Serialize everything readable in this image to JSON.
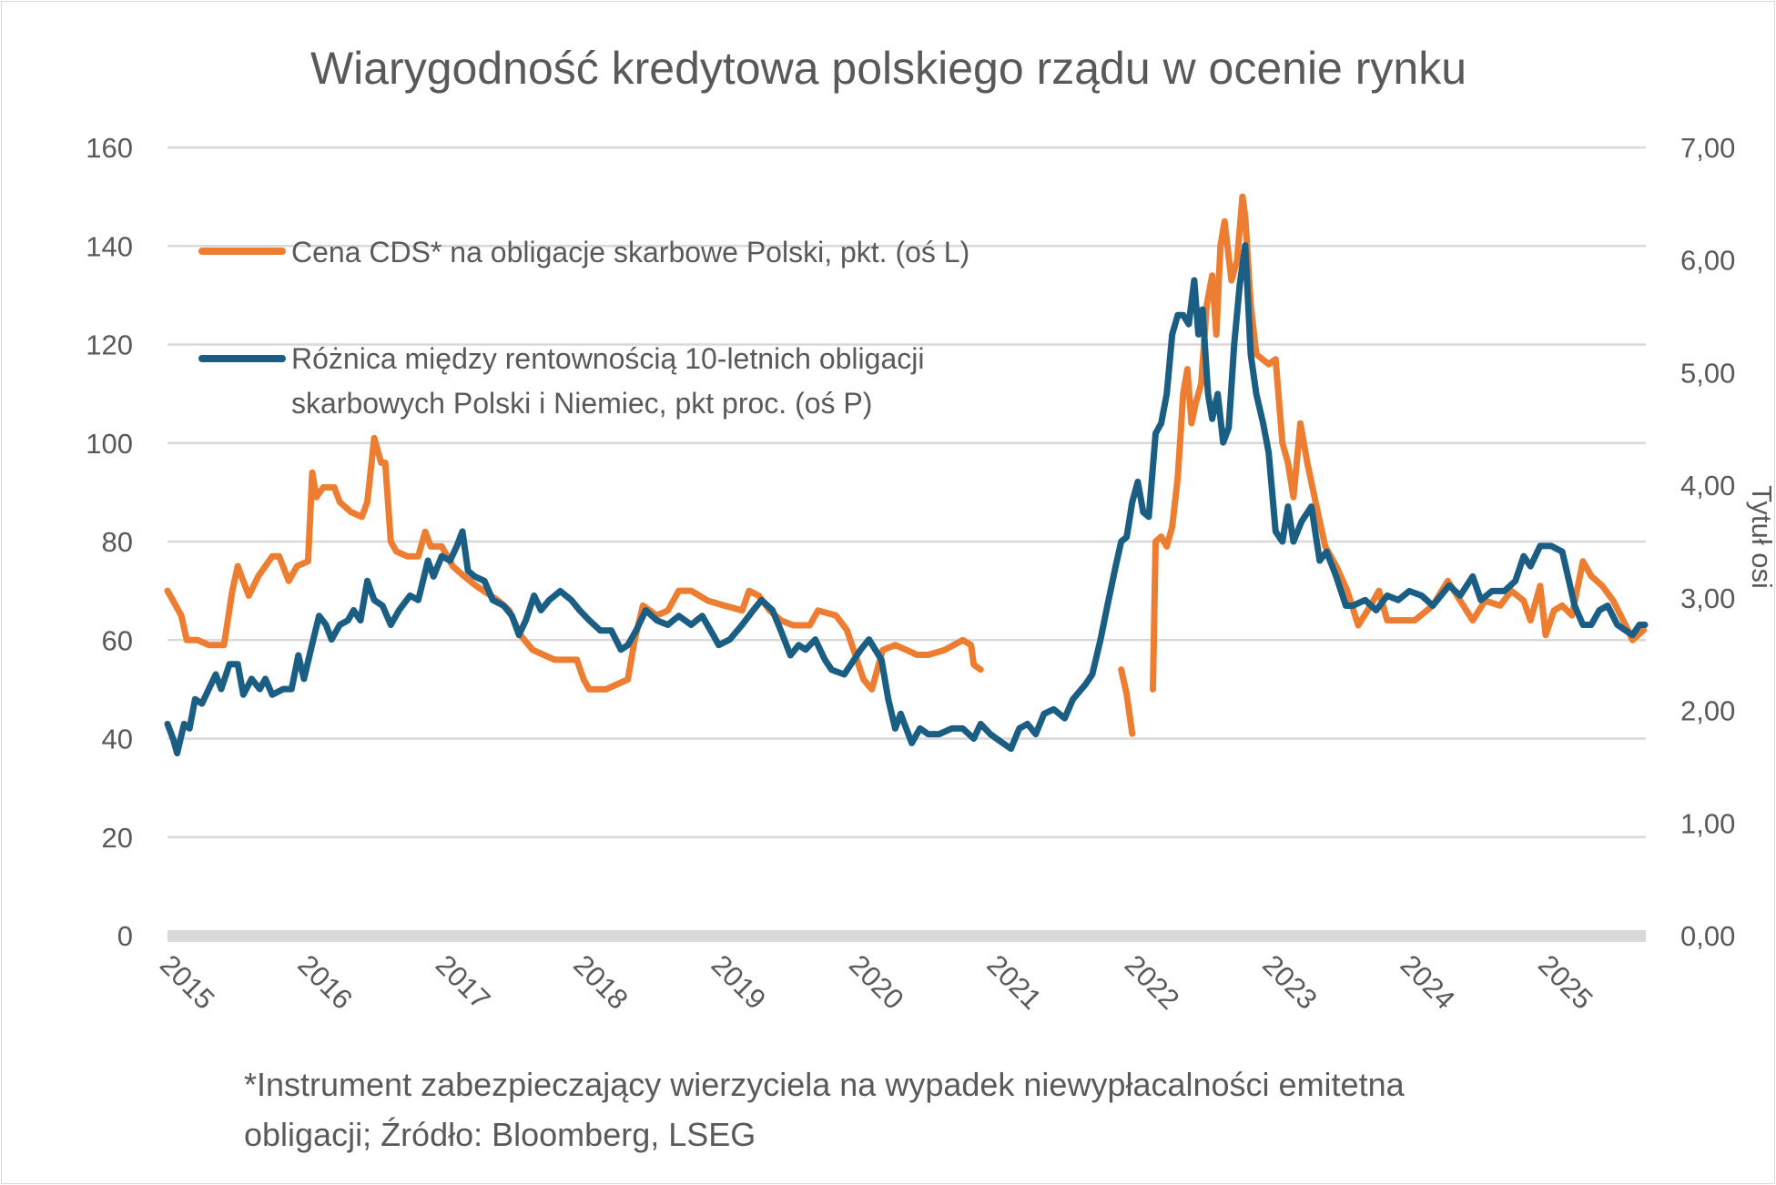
{
  "chart_data": {
    "type": "line",
    "title": "Wiarygodność kredytowa polskiego rządu w ocenie rynku",
    "xlabel": "",
    "ylabel": "",
    "y2label": "Tytuł osi",
    "x_ticks": [
      "2015",
      "2016",
      "2017",
      "2018",
      "2019",
      "2020",
      "2021",
      "2022",
      "2023",
      "2024",
      "2025"
    ],
    "xlim": [
      2015,
      2025.72
    ],
    "ylim": [
      0,
      160
    ],
    "y_ticks": [
      "0",
      "20",
      "40",
      "60",
      "80",
      "100",
      "120",
      "140",
      "160"
    ],
    "y2lim": [
      0,
      7
    ],
    "y2_ticks": [
      "0,00",
      "1,00",
      "2,00",
      "3,00",
      "4,00",
      "5,00",
      "6,00",
      "7,00"
    ],
    "grid": true,
    "legend_placement": "top-left",
    "series": [
      {
        "name": "Cena CDS* na obligacje skarbowe Polski, pkt. (oś L)",
        "axis": "left",
        "color": "#ED7D31",
        "x": [
          2015.0,
          2015.04,
          2015.1,
          2015.14,
          2015.22,
          2015.3,
          2015.41,
          2015.47,
          2015.51,
          2015.59,
          2015.66,
          2015.76,
          2015.81,
          2015.88,
          2015.94,
          2016.02,
          2016.05,
          2016.08,
          2016.13,
          2016.21,
          2016.25,
          2016.33,
          2016.41,
          2016.45,
          2016.5,
          2016.55,
          2016.58,
          2016.62,
          2016.66,
          2016.74,
          2016.82,
          2016.87,
          2016.91,
          2016.99,
          2017.07,
          2017.15,
          2017.24,
          2017.4,
          2017.48,
          2017.56,
          2017.65,
          2017.73,
          2017.81,
          2017.97,
          2018.02,
          2018.06,
          2018.18,
          2018.26,
          2018.34,
          2018.39,
          2018.45,
          2018.55,
          2018.63,
          2018.71,
          2018.8,
          2018.92,
          2019.04,
          2019.17,
          2019.22,
          2019.29,
          2019.37,
          2019.45,
          2019.54,
          2019.66,
          2019.72,
          2019.85,
          2019.93,
          2019.99,
          2020.05,
          2020.11,
          2020.19,
          2020.28,
          2020.36,
          2020.44,
          2020.52,
          2020.64,
          2020.77,
          2020.83,
          2020.85,
          2020.9,
          2021.4,
          2021.92,
          2021.96,
          2022.0,
          2022.08,
          2022.15,
          2022.17,
          2022.21,
          2022.25,
          2022.29,
          2022.33,
          2022.37,
          2022.4,
          2022.43,
          2022.46,
          2022.5,
          2022.54,
          2022.58,
          2022.61,
          2022.64,
          2022.67,
          2022.72,
          2022.76,
          2022.8,
          2022.82,
          2022.86,
          2022.9,
          2022.99,
          2023.04,
          2023.09,
          2023.13,
          2023.17,
          2023.22,
          2023.27,
          2023.33,
          2023.4,
          2023.48,
          2023.56,
          2023.64,
          2023.73,
          2023.79,
          2023.85,
          2023.97,
          2024.05,
          2024.18,
          2024.29,
          2024.38,
          2024.47,
          2024.56,
          2024.67,
          2024.75,
          2024.84,
          2024.89,
          2024.96,
          2025.0,
          2025.06,
          2025.12,
          2025.19,
          2025.27,
          2025.33,
          2025.41,
          2025.49,
          2025.58,
          2025.63,
          2025.71
        ],
        "values": [
          70,
          68,
          65,
          60,
          60,
          59,
          59,
          70,
          75,
          69,
          73,
          77,
          77,
          72,
          75,
          76,
          94,
          89,
          91,
          91,
          88,
          86,
          85,
          88,
          101,
          96,
          96,
          80,
          78,
          77,
          77,
          82,
          79,
          79,
          75,
          73,
          71,
          68,
          66,
          61,
          58,
          57,
          56,
          56,
          52,
          50,
          50,
          51,
          52,
          60,
          67,
          65,
          66,
          70,
          70,
          68,
          67,
          66,
          70,
          69,
          66,
          64,
          63,
          63,
          66,
          65,
          62,
          57,
          52,
          50,
          58,
          59,
          58,
          57,
          57,
          58,
          60,
          59,
          55,
          54,
          null,
          54,
          49,
          41,
          null,
          50,
          80,
          81,
          79,
          83,
          93,
          110,
          115,
          104,
          108,
          112,
          128,
          134,
          122,
          140,
          145,
          133,
          137,
          150,
          146,
          128,
          118,
          116,
          117,
          100,
          96,
          89,
          104,
          96,
          88,
          79,
          75,
          70,
          63,
          67,
          70,
          64,
          64,
          64,
          67,
          72,
          68,
          64,
          68,
          67,
          70,
          68,
          64,
          71,
          61,
          66,
          67,
          65,
          76,
          73,
          71,
          68,
          63,
          60,
          62
        ]
      },
      {
        "name": "Różnica między rentownością 10-letnich obligacji skarbowych Polski i Niemiec, pkt proc. (oś P)",
        "name_lines": [
          "Różnica między rentownością 10-letnich obligacji",
          "skarbowych Polski i Niemiec, pkt proc. (oś P)"
        ],
        "axis": "right",
        "color": "#1B5E83",
        "x": [
          2015.0,
          2015.04,
          2015.07,
          2015.12,
          2015.16,
          2015.2,
          2015.25,
          2015.3,
          2015.35,
          2015.39,
          2015.45,
          2015.51,
          2015.55,
          2015.61,
          2015.67,
          2015.71,
          2015.76,
          2015.84,
          2015.9,
          2015.95,
          2015.99,
          2016.04,
          2016.1,
          2016.15,
          2016.19,
          2016.25,
          2016.31,
          2016.35,
          2016.4,
          2016.45,
          2016.5,
          2016.56,
          2016.62,
          2016.68,
          2016.76,
          2016.82,
          2016.89,
          2016.93,
          2016.99,
          2017.05,
          2017.1,
          2017.14,
          2017.18,
          2017.23,
          2017.3,
          2017.36,
          2017.44,
          2017.5,
          2017.55,
          2017.6,
          2017.66,
          2017.71,
          2017.77,
          2017.85,
          2017.93,
          2017.99,
          2018.06,
          2018.14,
          2018.22,
          2018.29,
          2018.34,
          2018.4,
          2018.47,
          2018.55,
          2018.63,
          2018.71,
          2018.8,
          2018.88,
          2018.96,
          2019.0,
          2019.08,
          2019.17,
          2019.25,
          2019.31,
          2019.39,
          2019.45,
          2019.52,
          2019.58,
          2019.63,
          2019.7,
          2019.77,
          2019.82,
          2019.91,
          2019.96,
          2020.03,
          2020.09,
          2020.18,
          2020.23,
          2020.28,
          2020.32,
          2020.36,
          2020.4,
          2020.46,
          2020.52,
          2020.6,
          2020.69,
          2020.77,
          2020.85,
          2020.9,
          2020.97,
          2021.06,
          2021.12,
          2021.18,
          2021.24,
          2021.3,
          2021.36,
          2021.43,
          2021.51,
          2021.57,
          2021.66,
          2021.71,
          2021.77,
          2021.82,
          2021.88,
          2021.92,
          2021.96,
          2022.0,
          2022.04,
          2022.08,
          2022.12,
          2022.17,
          2022.21,
          2022.25,
          2022.29,
          2022.33,
          2022.37,
          2022.41,
          2022.45,
          2022.48,
          2022.51,
          2022.55,
          2022.58,
          2022.62,
          2022.66,
          2022.7,
          2022.74,
          2022.78,
          2022.82,
          2022.86,
          2022.9,
          2022.95,
          2022.99,
          2023.04,
          2023.09,
          2023.13,
          2023.17,
          2023.23,
          2023.3,
          2023.36,
          2023.41,
          2023.48,
          2023.55,
          2023.6,
          2023.69,
          2023.77,
          2023.85,
          2023.93,
          2024.01,
          2024.1,
          2024.18,
          2024.24,
          2024.3,
          2024.38,
          2024.47,
          2024.53,
          2024.61,
          2024.7,
          2024.78,
          2024.84,
          2024.89,
          2024.96,
          2025.04,
          2025.12,
          2025.21,
          2025.27,
          2025.33,
          2025.39,
          2025.45,
          2025.52,
          2025.58,
          2025.63,
          2025.68,
          2025.72
        ],
        "values": [
          1.88,
          1.75,
          1.62,
          1.88,
          1.84,
          2.1,
          2.06,
          2.19,
          2.32,
          2.19,
          2.41,
          2.41,
          2.14,
          2.28,
          2.19,
          2.28,
          2.14,
          2.19,
          2.19,
          2.49,
          2.28,
          2.54,
          2.84,
          2.76,
          2.63,
          2.76,
          2.8,
          2.89,
          2.8,
          3.15,
          2.98,
          2.93,
          2.76,
          2.89,
          3.02,
          2.98,
          3.33,
          3.19,
          3.37,
          3.33,
          3.46,
          3.59,
          3.24,
          3.19,
          3.15,
          2.98,
          2.93,
          2.84,
          2.67,
          2.8,
          3.02,
          2.89,
          2.98,
          3.06,
          2.98,
          2.89,
          2.8,
          2.71,
          2.71,
          2.54,
          2.58,
          2.71,
          2.89,
          2.8,
          2.76,
          2.84,
          2.76,
          2.84,
          2.67,
          2.58,
          2.63,
          2.76,
          2.89,
          2.98,
          2.89,
          2.71,
          2.49,
          2.58,
          2.54,
          2.63,
          2.45,
          2.36,
          2.32,
          2.41,
          2.54,
          2.63,
          2.45,
          2.1,
          1.84,
          1.97,
          1.84,
          1.71,
          1.84,
          1.79,
          1.79,
          1.84,
          1.84,
          1.75,
          1.88,
          1.79,
          1.71,
          1.66,
          1.84,
          1.88,
          1.79,
          1.97,
          2.01,
          1.93,
          2.1,
          2.23,
          2.32,
          2.63,
          2.93,
          3.28,
          3.5,
          3.54,
          3.85,
          4.03,
          3.76,
          3.72,
          4.46,
          4.55,
          4.81,
          5.34,
          5.51,
          5.51,
          5.43,
          5.82,
          5.34,
          5.56,
          4.81,
          4.59,
          4.81,
          4.38,
          4.51,
          5.25,
          5.78,
          6.13,
          5.16,
          4.81,
          4.55,
          4.29,
          3.59,
          3.5,
          3.81,
          3.5,
          3.68,
          3.81,
          3.33,
          3.41,
          3.19,
          2.93,
          2.93,
          2.98,
          2.89,
          3.02,
          2.98,
          3.06,
          3.02,
          2.93,
          3.02,
          3.11,
          3.02,
          3.19,
          2.98,
          3.06,
          3.06,
          3.15,
          3.37,
          3.28,
          3.46,
          3.46,
          3.41,
          2.93,
          2.76,
          2.76,
          2.89,
          2.93,
          2.76,
          2.71,
          2.67,
          2.76,
          2.76
        ]
      }
    ],
    "footnote": [
      "*Instrument zabezpieczający wierzyciela na wypadek niewypłacalności emitetna",
      "obligacji; Źródło: Bloomberg, LSEG"
    ]
  }
}
